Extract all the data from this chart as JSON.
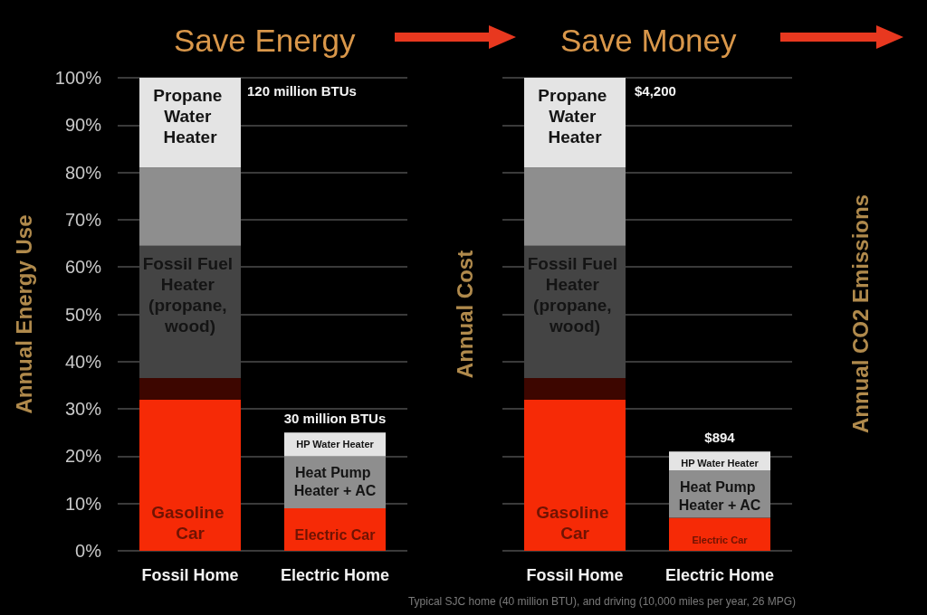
{
  "chart_data": [
    {
      "type": "bar",
      "title": "Save Energy",
      "ylabel": "Annual Energy Use",
      "categories": [
        "Fossil Home",
        "Electric Home"
      ],
      "stacked": true,
      "series": [
        {
          "color": "#f62a06",
          "values": [
            32,
            9
          ],
          "value_labels": [
            "Gasoline Car",
            "Electric Car"
          ]
        },
        {
          "color": "#3d0600",
          "values": [
            4.5,
            null
          ]
        },
        {
          "color": "#444444",
          "values": [
            28,
            null
          ],
          "value_labels": [
            "Fossil Fuel Heater (propane, wood)",
            null
          ]
        },
        {
          "color": "#8e8e8e",
          "values": [
            16.5,
            11
          ],
          "value_labels": [
            null,
            "Heat Pump Heater + AC"
          ]
        },
        {
          "color": "#e4e4e4",
          "values": [
            19,
            5
          ],
          "value_labels": [
            "Propane Water Heater",
            "HP Water Heater"
          ]
        }
      ],
      "ylim": [
        0,
        100
      ],
      "yticks": [
        {
          "value": 0,
          "label": "0%"
        },
        {
          "value": 10,
          "label": "10%"
        },
        {
          "value": 20,
          "label": "20%"
        },
        {
          "value": 30,
          "label": "30%"
        },
        {
          "value": 40,
          "label": "40%"
        },
        {
          "value": 50,
          "label": "50%"
        },
        {
          "value": 60,
          "label": "60%"
        },
        {
          "value": 70,
          "label": "70%"
        },
        {
          "value": 80,
          "label": "80%"
        },
        {
          "value": 90,
          "label": "90%"
        },
        {
          "value": 100,
          "label": "100%"
        }
      ],
      "grid": "y",
      "annotations": [
        "120 million BTUs",
        {
          "text": "30 million BTUs",
          "x": "Electric Home",
          "y": 25
        }
      ]
    },
    {
      "type": "bar",
      "title": "Save Money",
      "ylabel": "Annual Cost",
      "categories": [
        "Fossil Home",
        "Electric Home"
      ],
      "stacked": true,
      "series": [
        {
          "color": "#f62a06",
          "values": [
            32,
            7
          ],
          "value_labels": [
            "Gasoline Car",
            "Electric Car"
          ]
        },
        {
          "color": "#3d0600",
          "values": [
            4.5,
            null
          ]
        },
        {
          "color": "#444444",
          "values": [
            28,
            null
          ],
          "value_labels": [
            "Fossil Fuel Heater (propane, wood)",
            null
          ]
        },
        {
          "color": "#8e8e8e",
          "values": [
            16.5,
            10
          ],
          "value_labels": [
            null,
            "Heat Pump Heater + AC"
          ]
        },
        {
          "color": "#e4e4e4",
          "values": [
            19,
            4
          ],
          "value_labels": [
            "Propane Water Heater",
            "HP Water Heater"
          ]
        }
      ],
      "ylim": [
        0,
        100
      ],
      "yticks": [
        0,
        10,
        20,
        30,
        40,
        50,
        60,
        70,
        80,
        90,
        100
      ],
      "tick_labels": "x",
      "grid": "y",
      "annotations": [
        "$4,200",
        {
          "text": "$894",
          "x": "Electric Home",
          "y": 21
        },
        "Typical SJC home (40 million BTU), and driving (10,000 miles per year, 26 MPG)"
      ]
    },
    {
      "type": "other",
      "ylabel": "Annual CO2 Emissions"
    }
  ]
}
